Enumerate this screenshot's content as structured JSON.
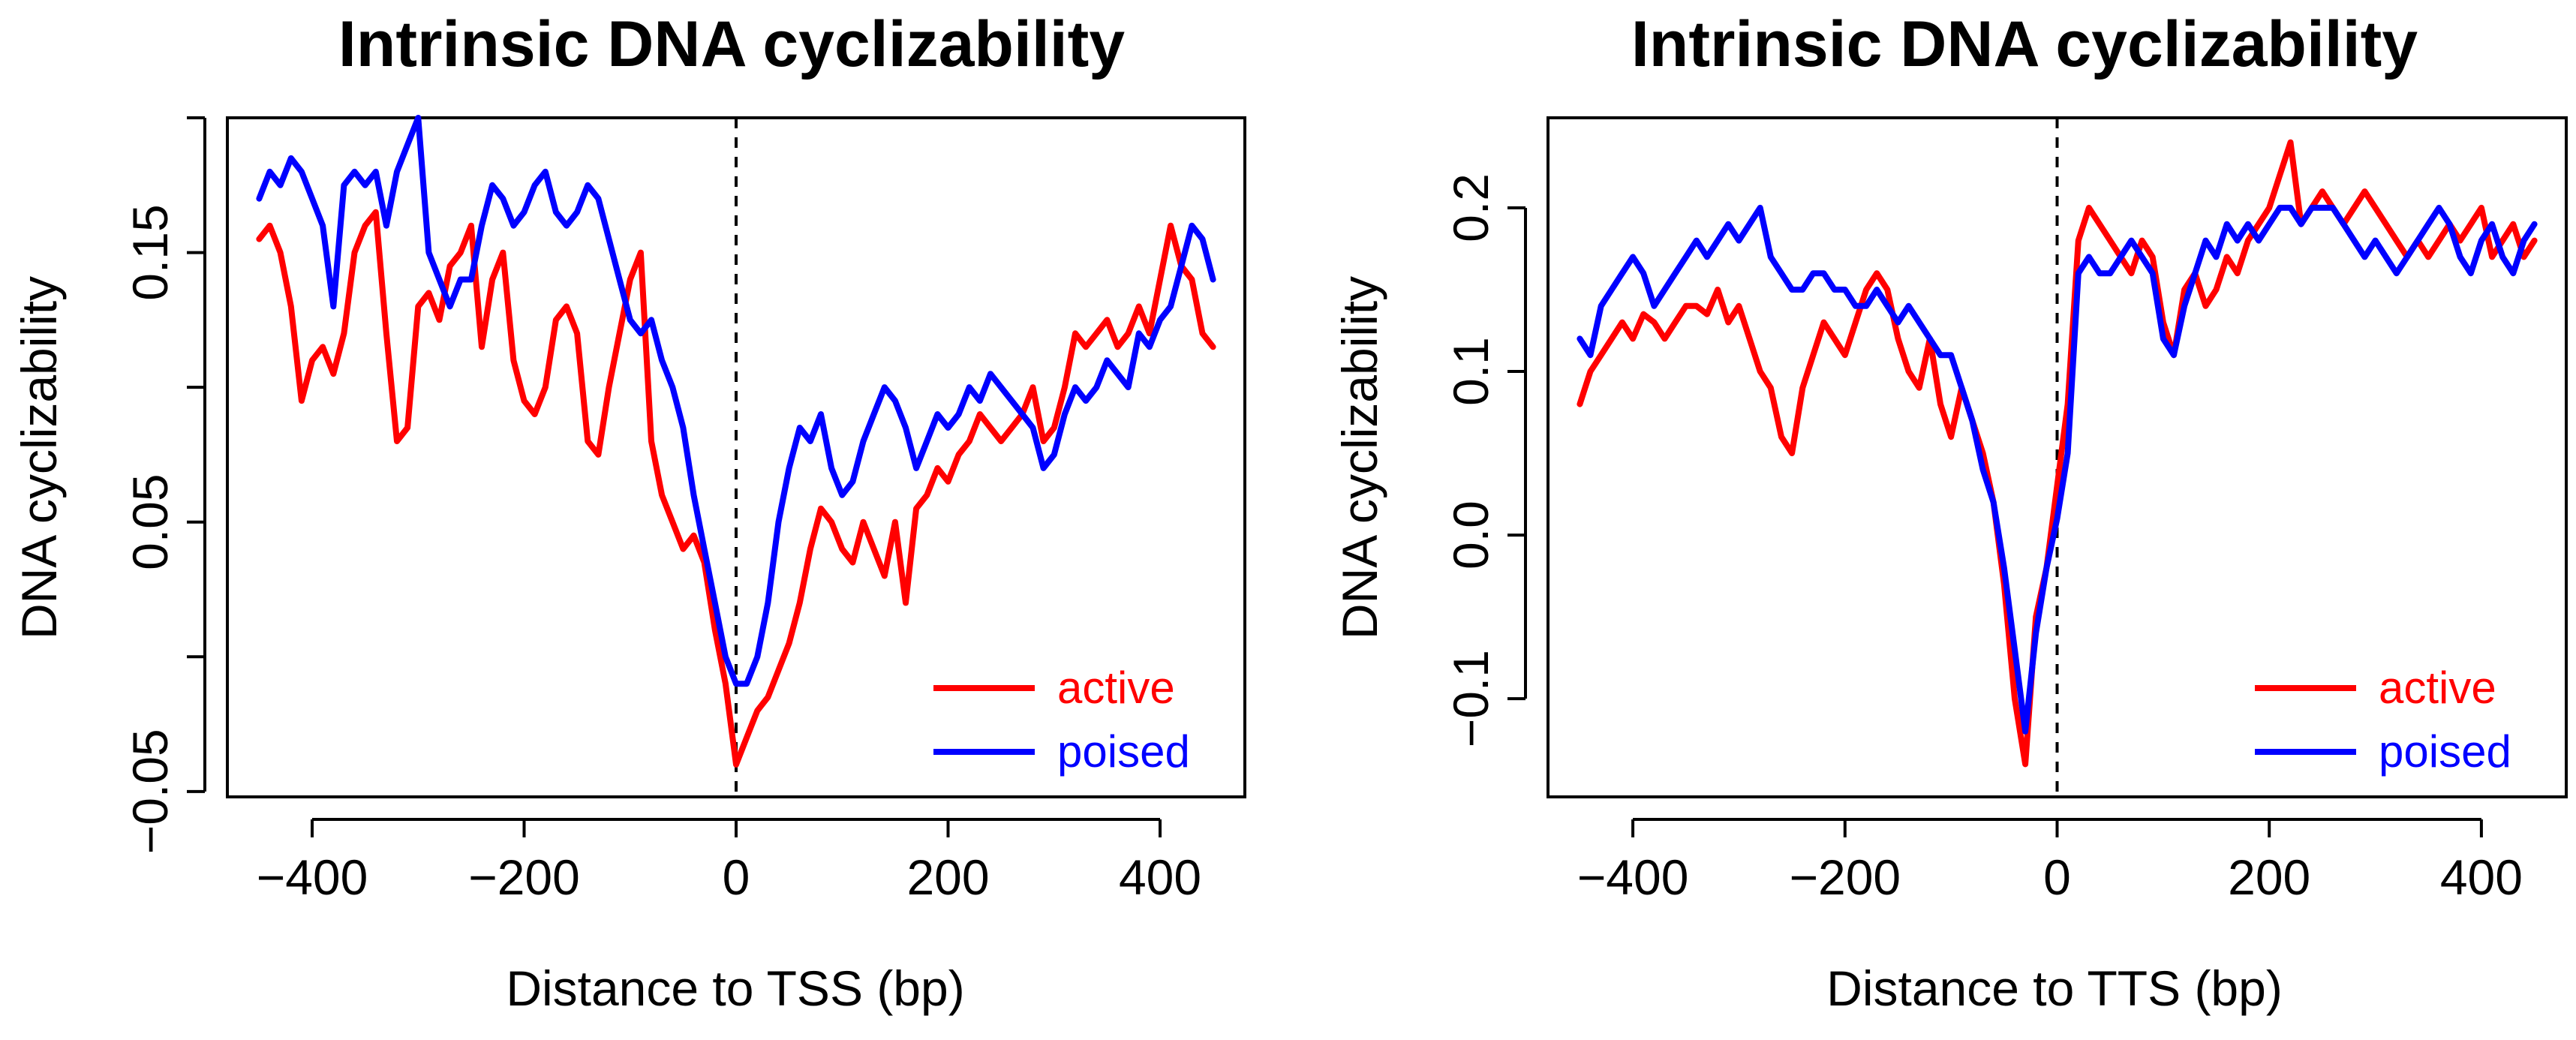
{
  "colors": {
    "active": "#ff0000",
    "poised": "#0000ff",
    "axis": "#000000",
    "background": "#ffffff"
  },
  "chart_data": [
    {
      "type": "line",
      "title": "Intrinsic DNA cyclizability",
      "xlabel": "Distance to TSS (bp)",
      "ylabel": "DNA cyclizability",
      "xlim": [
        -480,
        480
      ],
      "ylim": [
        -0.052,
        0.2
      ],
      "xticks": [
        -400,
        -200,
        0,
        200,
        400
      ],
      "xtick_labels": [
        "−400",
        "−200",
        "0",
        "200",
        "400"
      ],
      "yticks": [
        -0.05,
        0.0,
        0.05,
        0.1,
        0.15,
        0.2
      ],
      "ytick_labels": [
        "−0.05",
        "",
        "0.05",
        "",
        "0.15",
        ""
      ],
      "vline": {
        "x": 0,
        "style": "dashed"
      },
      "legend": {
        "position": "bottom-right",
        "entries": [
          "active",
          "poised"
        ]
      },
      "series": [
        {
          "name": "active",
          "color": "#ff0000",
          "x": [
            -450,
            -440,
            -430,
            -420,
            -410,
            -400,
            -390,
            -380,
            -370,
            -360,
            -350,
            -340,
            -330,
            -320,
            -310,
            -300,
            -290,
            -280,
            -270,
            -260,
            -250,
            -240,
            -230,
            -220,
            -210,
            -200,
            -190,
            -180,
            -170,
            -160,
            -150,
            -140,
            -130,
            -120,
            -110,
            -100,
            -90,
            -80,
            -70,
            -60,
            -50,
            -40,
            -30,
            -20,
            -10,
            0,
            10,
            20,
            30,
            40,
            50,
            60,
            70,
            80,
            90,
            100,
            110,
            120,
            130,
            140,
            150,
            160,
            170,
            180,
            190,
            200,
            210,
            220,
            230,
            240,
            250,
            260,
            270,
            280,
            290,
            300,
            310,
            320,
            330,
            340,
            350,
            360,
            370,
            380,
            390,
            400,
            410,
            420,
            430,
            440,
            450
          ],
          "y": [
            0.155,
            0.16,
            0.15,
            0.13,
            0.095,
            0.11,
            0.115,
            0.105,
            0.12,
            0.15,
            0.16,
            0.165,
            0.12,
            0.08,
            0.085,
            0.13,
            0.135,
            0.125,
            0.145,
            0.15,
            0.16,
            0.115,
            0.14,
            0.15,
            0.11,
            0.095,
            0.09,
            0.1,
            0.125,
            0.13,
            0.12,
            0.08,
            0.075,
            0.1,
            0.12,
            0.14,
            0.15,
            0.08,
            0.06,
            0.05,
            0.04,
            0.045,
            0.035,
            0.01,
            -0.01,
            -0.04,
            -0.03,
            -0.02,
            -0.015,
            -0.005,
            0.005,
            0.02,
            0.04,
            0.055,
            0.05,
            0.04,
            0.035,
            0.05,
            0.04,
            0.03,
            0.05,
            0.02,
            0.055,
            0.06,
            0.07,
            0.065,
            0.075,
            0.08,
            0.09,
            0.085,
            0.08,
            0.085,
            0.09,
            0.1,
            0.08,
            0.085,
            0.1,
            0.12,
            0.115,
            0.12,
            0.125,
            0.115,
            0.12,
            0.13,
            0.12,
            0.14,
            0.16,
            0.145,
            0.14,
            0.12,
            0.115
          ]
        },
        {
          "name": "poised",
          "color": "#0000ff",
          "x": [
            -450,
            -440,
            -430,
            -420,
            -410,
            -400,
            -390,
            -380,
            -370,
            -360,
            -350,
            -340,
            -330,
            -320,
            -310,
            -300,
            -290,
            -280,
            -270,
            -260,
            -250,
            -240,
            -230,
            -220,
            -210,
            -200,
            -190,
            -180,
            -170,
            -160,
            -150,
            -140,
            -130,
            -120,
            -110,
            -100,
            -90,
            -80,
            -70,
            -60,
            -50,
            -40,
            -30,
            -20,
            -10,
            0,
            10,
            20,
            30,
            40,
            50,
            60,
            70,
            80,
            90,
            100,
            110,
            120,
            130,
            140,
            150,
            160,
            170,
            180,
            190,
            200,
            210,
            220,
            230,
            240,
            250,
            260,
            270,
            280,
            290,
            300,
            310,
            320,
            330,
            340,
            350,
            360,
            370,
            380,
            390,
            400,
            410,
            420,
            430,
            440,
            450
          ],
          "y": [
            0.17,
            0.18,
            0.175,
            0.185,
            0.18,
            0.17,
            0.16,
            0.13,
            0.175,
            0.18,
            0.175,
            0.18,
            0.16,
            0.18,
            0.19,
            0.2,
            0.15,
            0.14,
            0.13,
            0.14,
            0.14,
            0.16,
            0.175,
            0.17,
            0.16,
            0.165,
            0.175,
            0.18,
            0.165,
            0.16,
            0.165,
            0.175,
            0.17,
            0.155,
            0.14,
            0.125,
            0.12,
            0.125,
            0.11,
            0.1,
            0.085,
            0.06,
            0.04,
            0.02,
            0.0,
            -0.01,
            -0.01,
            0.0,
            0.02,
            0.05,
            0.07,
            0.085,
            0.08,
            0.09,
            0.07,
            0.06,
            0.065,
            0.08,
            0.09,
            0.1,
            0.095,
            0.085,
            0.07,
            0.08,
            0.09,
            0.085,
            0.09,
            0.1,
            0.095,
            0.105,
            0.1,
            0.095,
            0.09,
            0.085,
            0.07,
            0.075,
            0.09,
            0.1,
            0.095,
            0.1,
            0.11,
            0.105,
            0.1,
            0.12,
            0.115,
            0.125,
            0.13,
            0.145,
            0.16,
            0.155,
            0.14
          ]
        }
      ]
    },
    {
      "type": "line",
      "title": "Intrinsic DNA cyclizability",
      "xlabel": "Distance to TTS (bp)",
      "ylabel": "DNA cyclizability",
      "xlim": [
        -480,
        480
      ],
      "ylim": [
        -0.16,
        0.255
      ],
      "xticks": [
        -400,
        -200,
        0,
        200,
        400
      ],
      "xtick_labels": [
        "−400",
        "−200",
        "0",
        "200",
        "400"
      ],
      "yticks": [
        -0.1,
        0.0,
        0.1,
        0.2
      ],
      "ytick_labels": [
        "−0.1",
        "0.0",
        "0.1",
        "0.2"
      ],
      "vline": {
        "x": 0,
        "style": "dashed"
      },
      "legend": {
        "position": "bottom-right",
        "entries": [
          "active",
          "poised"
        ]
      },
      "series": [
        {
          "name": "active",
          "color": "#ff0000",
          "x": [
            -450,
            -440,
            -430,
            -420,
            -410,
            -400,
            -390,
            -380,
            -370,
            -360,
            -350,
            -340,
            -330,
            -320,
            -310,
            -300,
            -290,
            -280,
            -270,
            -260,
            -250,
            -240,
            -230,
            -220,
            -210,
            -200,
            -190,
            -180,
            -170,
            -160,
            -150,
            -140,
            -130,
            -120,
            -110,
            -100,
            -90,
            -80,
            -70,
            -60,
            -50,
            -40,
            -30,
            -20,
            -10,
            0,
            10,
            20,
            30,
            40,
            50,
            60,
            70,
            80,
            90,
            100,
            110,
            120,
            130,
            140,
            150,
            160,
            170,
            180,
            190,
            200,
            210,
            220,
            230,
            240,
            250,
            260,
            270,
            280,
            290,
            300,
            310,
            320,
            330,
            340,
            350,
            360,
            370,
            380,
            390,
            400,
            410,
            420,
            430,
            440,
            450
          ],
          "y": [
            0.08,
            0.1,
            0.11,
            0.12,
            0.13,
            0.12,
            0.135,
            0.13,
            0.12,
            0.13,
            0.14,
            0.14,
            0.135,
            0.15,
            0.13,
            0.14,
            0.12,
            0.1,
            0.09,
            0.06,
            0.05,
            0.09,
            0.11,
            0.13,
            0.12,
            0.11,
            0.13,
            0.15,
            0.16,
            0.15,
            0.12,
            0.1,
            0.09,
            0.12,
            0.08,
            0.06,
            0.09,
            0.07,
            0.05,
            0.02,
            -0.03,
            -0.1,
            -0.14,
            -0.05,
            -0.02,
            0.03,
            0.08,
            0.18,
            0.2,
            0.19,
            0.18,
            0.17,
            0.16,
            0.18,
            0.17,
            0.13,
            0.11,
            0.15,
            0.16,
            0.14,
            0.15,
            0.17,
            0.16,
            0.18,
            0.19,
            0.2,
            0.22,
            0.24,
            0.19,
            0.2,
            0.21,
            0.2,
            0.19,
            0.2,
            0.21,
            0.2,
            0.19,
            0.18,
            0.17,
            0.18,
            0.17,
            0.18,
            0.19,
            0.18,
            0.19,
            0.2,
            0.17,
            0.18,
            0.19,
            0.17,
            0.18
          ]
        },
        {
          "name": "poised",
          "color": "#0000ff",
          "x": [
            -450,
            -440,
            -430,
            -420,
            -410,
            -400,
            -390,
            -380,
            -370,
            -360,
            -350,
            -340,
            -330,
            -320,
            -310,
            -300,
            -290,
            -280,
            -270,
            -260,
            -250,
            -240,
            -230,
            -220,
            -210,
            -200,
            -190,
            -180,
            -170,
            -160,
            -150,
            -140,
            -130,
            -120,
            -110,
            -100,
            -90,
            -80,
            -70,
            -60,
            -50,
            -40,
            -30,
            -20,
            -10,
            0,
            10,
            20,
            30,
            40,
            50,
            60,
            70,
            80,
            90,
            100,
            110,
            120,
            130,
            140,
            150,
            160,
            170,
            180,
            190,
            200,
            210,
            220,
            230,
            240,
            250,
            260,
            270,
            280,
            290,
            300,
            310,
            320,
            330,
            340,
            350,
            360,
            370,
            380,
            390,
            400,
            410,
            420,
            430,
            440,
            450
          ],
          "y": [
            0.12,
            0.11,
            0.14,
            0.15,
            0.16,
            0.17,
            0.16,
            0.14,
            0.15,
            0.16,
            0.17,
            0.18,
            0.17,
            0.18,
            0.19,
            0.18,
            0.19,
            0.2,
            0.17,
            0.16,
            0.15,
            0.15,
            0.16,
            0.16,
            0.15,
            0.15,
            0.14,
            0.14,
            0.15,
            0.14,
            0.13,
            0.14,
            0.13,
            0.12,
            0.11,
            0.11,
            0.09,
            0.07,
            0.04,
            0.02,
            -0.02,
            -0.07,
            -0.12,
            -0.06,
            -0.02,
            0.01,
            0.05,
            0.16,
            0.17,
            0.16,
            0.16,
            0.17,
            0.18,
            0.17,
            0.16,
            0.12,
            0.11,
            0.14,
            0.16,
            0.18,
            0.17,
            0.19,
            0.18,
            0.19,
            0.18,
            0.19,
            0.2,
            0.2,
            0.19,
            0.2,
            0.2,
            0.2,
            0.19,
            0.18,
            0.17,
            0.18,
            0.17,
            0.16,
            0.17,
            0.18,
            0.19,
            0.2,
            0.19,
            0.17,
            0.16,
            0.18,
            0.19,
            0.17,
            0.16,
            0.18,
            0.19
          ]
        }
      ]
    }
  ]
}
